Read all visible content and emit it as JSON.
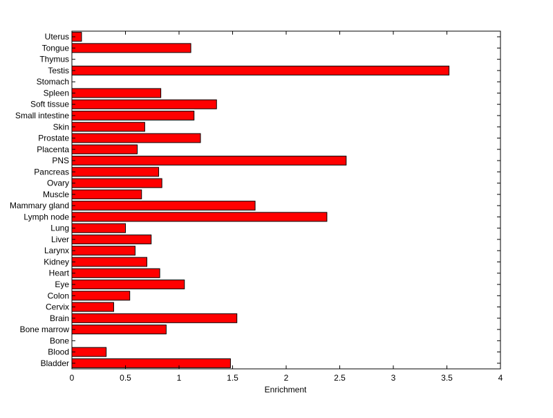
{
  "chart_data": {
    "type": "bar",
    "orientation": "horizontal",
    "categories": [
      "Uterus",
      "Tongue",
      "Thymus",
      "Testis",
      "Stomach",
      "Spleen",
      "Soft tissue",
      "Small intestine",
      "Skin",
      "Prostate",
      "Placenta",
      "PNS",
      "Pancreas",
      "Ovary",
      "Muscle",
      "Mammary gland",
      "Lymph node",
      "Lung",
      "Liver",
      "Larynx",
      "Kidney",
      "Heart",
      "Eye",
      "Colon",
      "Cervix",
      "Brain",
      "Bone marrow",
      "Bone",
      "Blood",
      "Bladder"
    ],
    "values": [
      0.09,
      1.11,
      0,
      3.52,
      0,
      0.83,
      1.35,
      1.14,
      0.68,
      1.2,
      0.61,
      2.56,
      0.81,
      0.84,
      0.65,
      1.71,
      2.38,
      0.5,
      0.74,
      0.59,
      0.7,
      0.82,
      1.05,
      0.54,
      0.39,
      1.54,
      0.88,
      0,
      0.32,
      1.48
    ],
    "title": "",
    "xlabel": "Enrichment",
    "ylabel": "",
    "xlim": [
      0,
      4
    ],
    "xticks": [
      0,
      0.5,
      1,
      1.5,
      2,
      2.5,
      3,
      3.5,
      4
    ],
    "xtick_labels": [
      "0",
      "0.5",
      "1",
      "1.5",
      "2",
      "2.5",
      "3",
      "3.5",
      "4"
    ],
    "bar_color": "#ff0000",
    "bar_edge_color": "#000000",
    "grid": false,
    "legend": "none"
  }
}
